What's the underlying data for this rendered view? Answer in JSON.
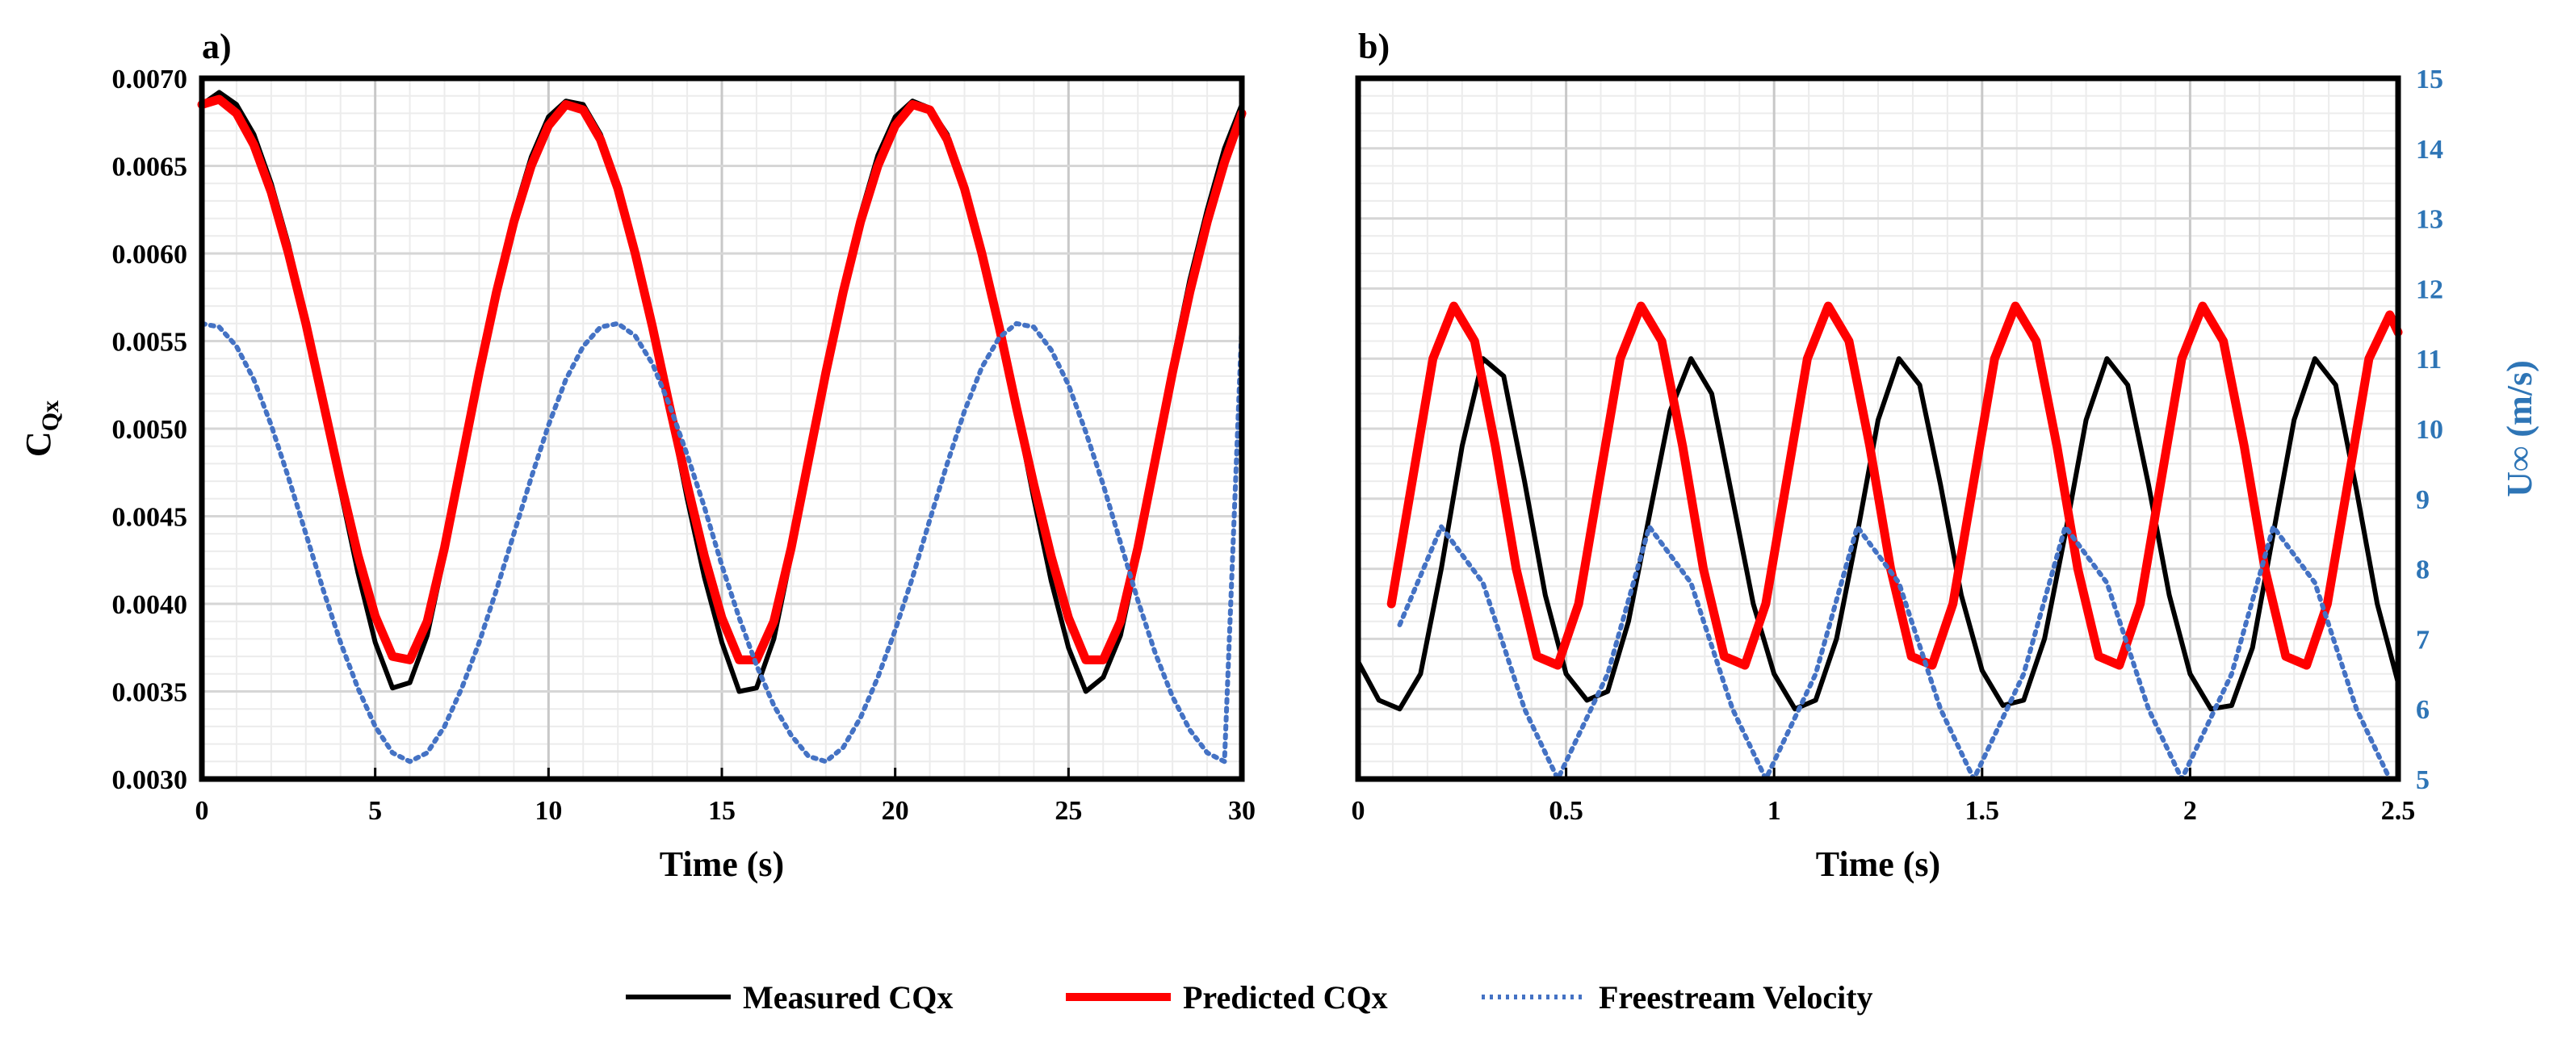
{
  "legend": [
    {
      "label": "Measured CQx",
      "color": "#000000",
      "style": "solid"
    },
    {
      "label": "Predicted CQx",
      "color": "#ff0000",
      "style": "solid"
    },
    {
      "label": "Freestream Velocity",
      "color": "#4472c4",
      "style": "dotted"
    }
  ],
  "chart_data": [
    {
      "type": "line",
      "panel_label": "a)",
      "xlabel": "Time (s)",
      "ylabel": "C",
      "ylabel_sub": "Qx",
      "xlim": [
        0,
        30
      ],
      "ylim": [
        0.003,
        0.007
      ],
      "x_ticks": [
        0,
        5,
        10,
        15,
        20,
        25,
        30
      ],
      "x_tick_labels": [
        "0",
        "5",
        "10",
        "15",
        "20",
        "25",
        "30"
      ],
      "y_ticks": [
        0.003,
        0.0035,
        0.004,
        0.0045,
        0.005,
        0.0055,
        0.006,
        0.0065,
        0.007
      ],
      "y_tick_labels": [
        "0.0030",
        "0.0035",
        "0.0040",
        "0.0045",
        "0.0050",
        "0.0055",
        "0.0060",
        "0.0065",
        "0.0070"
      ],
      "grid": true,
      "series": [
        {
          "name": "Measured CQx",
          "axis": "left",
          "color": "#000000",
          "x": [
            0,
            0.5,
            1,
            1.5,
            2,
            2.5,
            3,
            3.5,
            4,
            4.5,
            5,
            5.5,
            6,
            6.5,
            7,
            7.5,
            8,
            8.5,
            9,
            9.5,
            10,
            10.5,
            11,
            11.5,
            12,
            12.5,
            13,
            13.5,
            14,
            14.5,
            15,
            15.5,
            16,
            16.5,
            17,
            17.5,
            18,
            18.5,
            19,
            19.5,
            20,
            20.5,
            21,
            21.5,
            22,
            22.5,
            23,
            23.5,
            24,
            24.5,
            25,
            25.5,
            26,
            26.5,
            27,
            27.5,
            28,
            28.5,
            29,
            29.5,
            30
          ],
          "values": [
            0.00685,
            0.00692,
            0.00685,
            0.00668,
            0.0064,
            0.00605,
            0.00563,
            0.00515,
            0.00465,
            0.00418,
            0.00378,
            0.00352,
            0.00355,
            0.00382,
            0.00428,
            0.00482,
            0.00535,
            0.00582,
            0.00622,
            0.00655,
            0.00678,
            0.00687,
            0.00685,
            0.00668,
            0.0064,
            0.00602,
            0.00558,
            0.0051,
            0.0046,
            0.00415,
            0.00378,
            0.0035,
            0.00352,
            0.0038,
            0.00428,
            0.00482,
            0.00535,
            0.00582,
            0.00622,
            0.00656,
            0.00678,
            0.00687,
            0.00683,
            0.00668,
            0.0064,
            0.00602,
            0.00558,
            0.0051,
            0.0046,
            0.00413,
            0.00375,
            0.0035,
            0.00358,
            0.00382,
            0.00428,
            0.00482,
            0.00537,
            0.00585,
            0.00625,
            0.0066,
            0.00685
          ]
        },
        {
          "name": "Predicted CQx",
          "axis": "left",
          "color": "#ff0000",
          "x": [
            0,
            0.5,
            1,
            1.5,
            2,
            2.5,
            3,
            3.5,
            4,
            4.5,
            5,
            5.5,
            6,
            6.5,
            7,
            7.5,
            8,
            8.5,
            9,
            9.5,
            10,
            10.5,
            11,
            11.5,
            12,
            12.5,
            13,
            13.5,
            14,
            14.5,
            15,
            15.5,
            16,
            16.5,
            17,
            17.5,
            18,
            18.5,
            19,
            19.5,
            20,
            20.5,
            21,
            21.5,
            22,
            22.5,
            23,
            23.5,
            24,
            24.5,
            25,
            25.5,
            26,
            26.5,
            27,
            27.5,
            28,
            28.5,
            29,
            29.5,
            30
          ],
          "values": [
            0.00685,
            0.00688,
            0.0068,
            0.00662,
            0.00635,
            0.006,
            0.0056,
            0.00515,
            0.0047,
            0.00428,
            0.00393,
            0.0037,
            0.00368,
            0.0039,
            0.00432,
            0.00482,
            0.00532,
            0.00578,
            0.00618,
            0.0065,
            0.00673,
            0.00685,
            0.00682,
            0.00665,
            0.00637,
            0.006,
            0.00558,
            0.00512,
            0.00468,
            0.00427,
            0.00392,
            0.00368,
            0.00368,
            0.0039,
            0.00432,
            0.00482,
            0.00532,
            0.00578,
            0.00618,
            0.0065,
            0.00673,
            0.00685,
            0.00682,
            0.00665,
            0.00637,
            0.006,
            0.00558,
            0.00512,
            0.00468,
            0.00427,
            0.00392,
            0.00368,
            0.00368,
            0.0039,
            0.00432,
            0.00482,
            0.00532,
            0.00578,
            0.00618,
            0.00652,
            0.0068
          ]
        },
        {
          "name": "Freestream Velocity",
          "axis": "right",
          "color": "#4472c4",
          "x": [
            0,
            0.5,
            1,
            1.5,
            2,
            2.5,
            3,
            3.5,
            4,
            4.5,
            5,
            5.5,
            6,
            6.5,
            7,
            7.5,
            8,
            8.5,
            9,
            9.5,
            10,
            10.5,
            11,
            11.5,
            12,
            12.5,
            13,
            13.5,
            14,
            14.5,
            15,
            15.5,
            16,
            16.5,
            17,
            17.5,
            18,
            18.5,
            19,
            19.5,
            20,
            20.5,
            21,
            21.5,
            22,
            22.5,
            23,
            23.5,
            24,
            24.5,
            25,
            25.5,
            26,
            26.5,
            27,
            27.5,
            28,
            28.5,
            29,
            29.5,
            30
          ],
          "values": [
            0.0056,
            0.00558,
            0.00547,
            0.00528,
            0.00502,
            0.00472,
            0.0044,
            0.00408,
            0.00378,
            0.00352,
            0.0033,
            0.00315,
            0.0031,
            0.00315,
            0.0033,
            0.00352,
            0.00378,
            0.00408,
            0.0044,
            0.00472,
            0.00502,
            0.00528,
            0.00547,
            0.00558,
            0.0056,
            0.00553,
            0.00537,
            0.00513,
            0.00485,
            0.00455,
            0.00422,
            0.00392,
            0.00365,
            0.00342,
            0.00325,
            0.00313,
            0.0031,
            0.00318,
            0.00335,
            0.00358,
            0.00385,
            0.00415,
            0.00448,
            0.0048,
            0.0051,
            0.00535,
            0.00552,
            0.0056,
            0.00558,
            0.00545,
            0.00525,
            0.00498,
            0.00468,
            0.00435,
            0.00402,
            0.00372,
            0.00347,
            0.00328,
            0.00315,
            0.0031,
            0.0056
          ]
        }
      ]
    },
    {
      "type": "line",
      "panel_label": "b)",
      "xlabel": "Time (s)",
      "ylabel_right": "U∞ (m/s)",
      "xlim": [
        0,
        2.5
      ],
      "ylim": [
        0.003,
        0.007
      ],
      "ylim_right": [
        5,
        15
      ],
      "x_ticks": [
        0,
        0.5,
        1,
        1.5,
        2,
        2.5
      ],
      "x_tick_labels": [
        "0",
        "0.5",
        "1",
        "1.5",
        "2",
        "2.5"
      ],
      "y_right_ticks": [
        5,
        6,
        7,
        8,
        9,
        10,
        11,
        12,
        13,
        14,
        15
      ],
      "y_right_tick_labels": [
        "5",
        "6",
        "7",
        "8",
        "9",
        "10",
        "11",
        "12",
        "13",
        "14",
        "15"
      ],
      "grid": true,
      "series": [
        {
          "name": "Measured CQx",
          "axis": "left",
          "color": "#000000",
          "x": [
            0,
            0.05,
            0.1,
            0.15,
            0.2,
            0.25,
            0.3,
            0.35,
            0.4,
            0.45,
            0.5,
            0.55,
            0.6,
            0.65,
            0.7,
            0.75,
            0.8,
            0.85,
            0.9,
            0.95,
            1.0,
            1.05,
            1.1,
            1.15,
            1.2,
            1.25,
            1.3,
            1.35,
            1.4,
            1.45,
            1.5,
            1.55,
            1.6,
            1.65,
            1.7,
            1.75,
            1.8,
            1.85,
            1.9,
            1.95,
            2.0,
            2.05,
            2.1,
            2.15,
            2.2,
            2.25,
            2.3,
            2.35,
            2.4,
            2.45,
            2.5
          ],
          "values": [
            0.00367,
            0.00345,
            0.0034,
            0.0036,
            0.0042,
            0.0049,
            0.0054,
            0.0053,
            0.0047,
            0.00405,
            0.0036,
            0.00345,
            0.0035,
            0.0039,
            0.0045,
            0.0051,
            0.0054,
            0.0052,
            0.0046,
            0.004,
            0.0036,
            0.0034,
            0.00345,
            0.0038,
            0.0044,
            0.00505,
            0.0054,
            0.00525,
            0.00468,
            0.00405,
            0.00362,
            0.00342,
            0.00345,
            0.0038,
            0.0044,
            0.00505,
            0.0054,
            0.00525,
            0.00468,
            0.00405,
            0.0036,
            0.0034,
            0.00342,
            0.00375,
            0.0044,
            0.00505,
            0.0054,
            0.00525,
            0.00465,
            0.004,
            0.00355
          ]
        },
        {
          "name": "Predicted CQx",
          "axis": "left",
          "color": "#ff0000",
          "x": [
            0.08,
            0.13,
            0.18,
            0.23,
            0.28,
            0.33,
            0.38,
            0.43,
            0.48,
            0.53,
            0.58,
            0.63,
            0.68,
            0.73,
            0.78,
            0.83,
            0.88,
            0.93,
            0.98,
            1.03,
            1.08,
            1.13,
            1.18,
            1.23,
            1.28,
            1.33,
            1.38,
            1.43,
            1.48,
            1.53,
            1.58,
            1.63,
            1.68,
            1.73,
            1.78,
            1.83,
            1.88,
            1.93,
            1.98,
            2.03,
            2.08,
            2.13,
            2.18,
            2.23,
            2.28,
            2.33,
            2.38,
            2.43,
            2.48,
            2.5
          ],
          "values": [
            0.004,
            0.0047,
            0.0054,
            0.0057,
            0.0055,
            0.0049,
            0.0042,
            0.0037,
            0.00365,
            0.004,
            0.0047,
            0.0054,
            0.0057,
            0.0055,
            0.0049,
            0.0042,
            0.0037,
            0.00365,
            0.004,
            0.0047,
            0.0054,
            0.0057,
            0.0055,
            0.0049,
            0.0042,
            0.0037,
            0.00365,
            0.004,
            0.0047,
            0.0054,
            0.0057,
            0.0055,
            0.0049,
            0.0042,
            0.0037,
            0.00365,
            0.004,
            0.0047,
            0.0054,
            0.0057,
            0.0055,
            0.0049,
            0.0042,
            0.0037,
            0.00365,
            0.004,
            0.0047,
            0.0054,
            0.00565,
            0.00555
          ]
        },
        {
          "name": "Freestream Velocity",
          "axis": "right",
          "color": "#4472c4",
          "x": [
            0.1,
            0.2,
            0.3,
            0.4,
            0.48,
            0.6,
            0.7,
            0.8,
            0.9,
            0.98,
            1.1,
            1.2,
            1.3,
            1.4,
            1.48,
            1.6,
            1.7,
            1.8,
            1.9,
            1.98,
            2.1,
            2.2,
            2.3,
            2.4,
            2.48
          ],
          "values": [
            7.2,
            8.6,
            7.8,
            6.0,
            5.0,
            6.5,
            8.6,
            7.8,
            6.0,
            5.0,
            6.5,
            8.6,
            7.8,
            6.0,
            5.0,
            6.5,
            8.6,
            7.8,
            6.0,
            5.0,
            6.5,
            8.6,
            7.8,
            6.0,
            5.0
          ]
        }
      ]
    }
  ]
}
